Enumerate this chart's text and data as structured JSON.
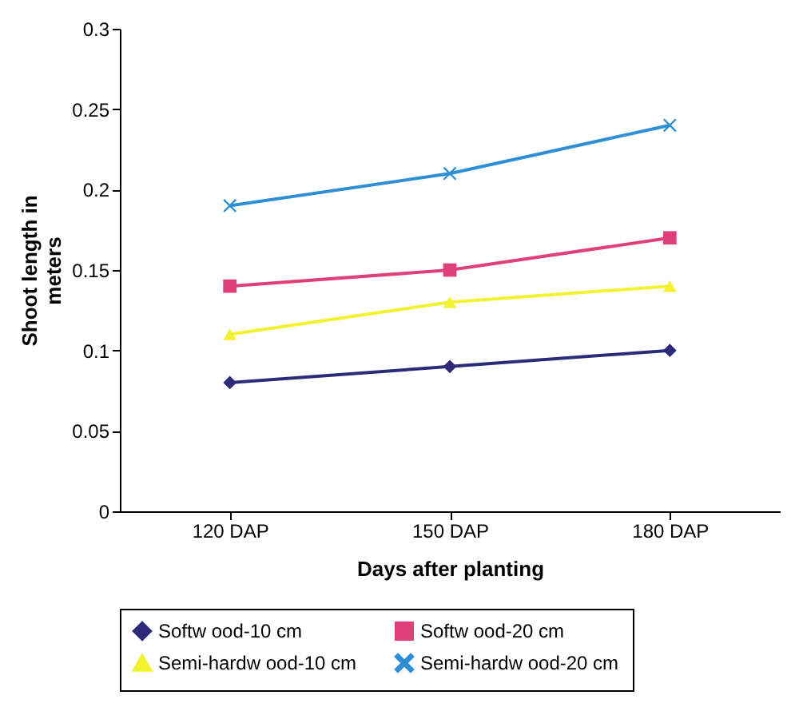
{
  "chart_data": {
    "type": "line",
    "xlabel": "Days after planting",
    "ylabel": "Shoot length in meters",
    "categories": [
      "120 DAP",
      "150 DAP",
      "180 DAP"
    ],
    "series": [
      {
        "name": "Softw ood-10 cm",
        "color": "#2e2a7a",
        "marker": "diamond",
        "values": [
          0.08,
          0.09,
          0.1
        ]
      },
      {
        "name": "Softw ood-20 cm",
        "color": "#e0407a",
        "marker": "square",
        "values": [
          0.14,
          0.15,
          0.17
        ]
      },
      {
        "name": "Semi-hardw ood-10 cm",
        "color": "#f2f230",
        "marker": "triangle",
        "values": [
          0.11,
          0.13,
          0.14
        ]
      },
      {
        "name": "Semi-hardw ood-20 cm",
        "color": "#2e8fd6",
        "marker": "cross",
        "values": [
          0.19,
          0.21,
          0.24
        ]
      }
    ],
    "ylim": [
      0,
      0.3
    ],
    "yticks": [
      0,
      0.05,
      0.1,
      0.15,
      0.2,
      0.25,
      0.3
    ],
    "grid": false,
    "legend": "bottom",
    "line_style": "solid"
  }
}
